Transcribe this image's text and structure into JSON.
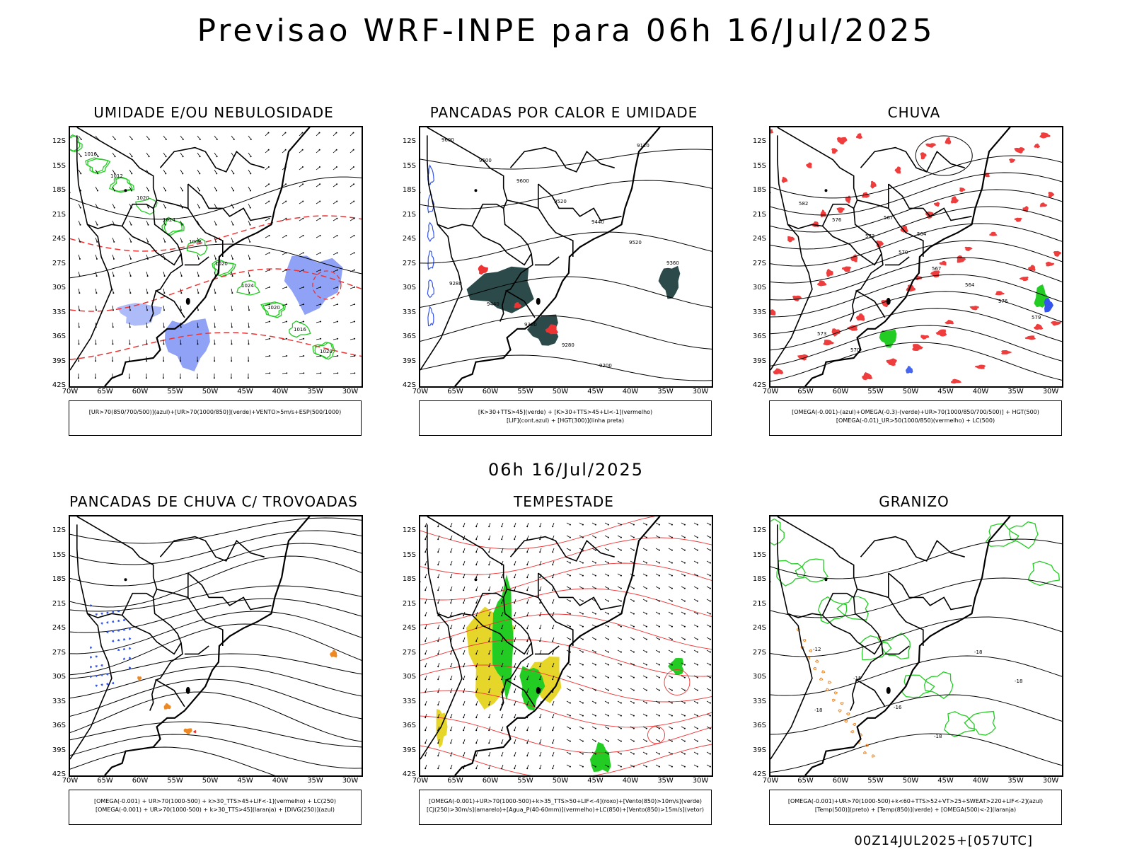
{
  "title": "Previsao WRF-INPE  para 06h 16/Jul/2025",
  "mid_title": "06h 16/Jul/2025",
  "footer": "00Z14JUL2025+[057UTC]",
  "lat_labels": [
    "12S",
    "15S",
    "18S",
    "21S",
    "24S",
    "27S",
    "30S",
    "33S",
    "36S",
    "39S",
    "42S"
  ],
  "lon_labels": [
    "70W",
    "65W",
    "60W",
    "55W",
    "50W",
    "45W",
    "40W",
    "35W",
    "30W"
  ],
  "panels": [
    {
      "title": "UMIDADE E/OU NEBULOSIDADE",
      "legend_1": "[UR>70(850/700/500)](azul)+[UR>70(1000/850)](verde)+VENTO>5m/s+ESP(500/1000)",
      "legend_2": "",
      "contour_labels": [
        "1016",
        "1012",
        "1020",
        "1024",
        "1008",
        "1020",
        "1024",
        "1020",
        "1016",
        "1020"
      ]
    },
    {
      "title": "PANCADAS POR CALOR E UMIDADE",
      "legend_1": "[K>30+TTS>45](verde) + [K>30+TTS>45+LI<-1](vermelho)",
      "legend_2": "[LIF](cont.azul) + [HGT(300)](linha preta)",
      "contour_labels": [
        "9600",
        "9600",
        "9600",
        "9520",
        "9440",
        "9520",
        "9360",
        "9280",
        "9440",
        "9360",
        "9280",
        "9200",
        "9120"
      ]
    },
    {
      "title": "CHUVA",
      "legend_1": "[OMEGA(-0.001)-(azul)+OMEGA(-0.3)-(verde)+UR>70(1000/850/700/500)] + HGT(500)",
      "legend_2": "[OMEGA(-0.01)_UR>50(1000/850)(vermelho) + LC(500)",
      "contour_labels": [
        "582",
        "576",
        "573",
        "570",
        "567",
        "564",
        "576",
        "579",
        "573",
        "570",
        "567",
        "564"
      ]
    },
    {
      "title": "PANCADAS DE CHUVA C/ TROVOADAS",
      "legend_1": "[OMEGA(-0.001) + UR>70(1000-500) + k>30_TTS>45+LIF<-1](vermelho) + LC(250)",
      "legend_2": "[OMEGA(-0.001) + UR>70(1000-500) + k>30_TTS>45](laranja) + [DIVG(250)](azul)",
      "contour_labels": []
    },
    {
      "title": "TEMPESTADE",
      "legend_1": "[OMEGA(-0.001)+UR>70(1000-500)+k>35_TTS>50+LIF<-4](roxo)+[Vento(850)>10m/s](verde)",
      "legend_2": "[CJ(250)>30m/s](amarelo)+[Agua_P(40-60mm)](vermelho)+LC(850)+[Vento(850)>15m/s](vetor)",
      "contour_labels": []
    },
    {
      "title": "GRANIZO",
      "legend_1": "[OMEGA(-0.001)+UR>70(1000-500)+k<60+TTS>52+VT>25+SWEAT>220+LIF<-2](azul)",
      "legend_2": "[Temp(500)](preto) + [Temp(850)](verde) + [OMEGA(500)<-2](laranja)",
      "contour_labels": [
        "-12",
        "-15",
        "-16",
        "-18",
        "-18",
        "-18",
        "-18"
      ]
    }
  ],
  "colors": {
    "green": "#22cc22",
    "blue": "#3355ee",
    "red": "#ee3333",
    "orange": "#ee8822",
    "yellow": "#e6d62a",
    "dark": "#2c4a4a",
    "lightred": "#ff6666"
  }
}
